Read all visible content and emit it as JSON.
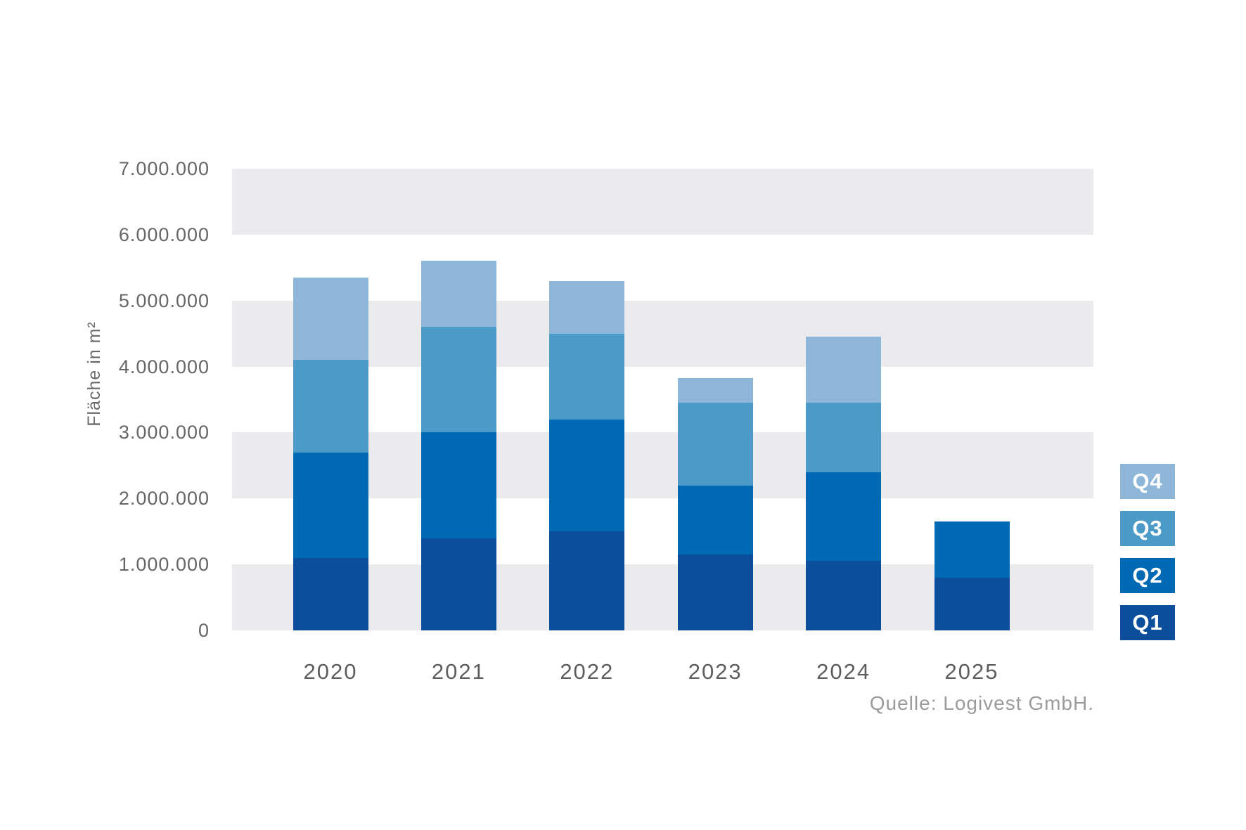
{
  "chart_data": {
    "type": "bar",
    "stacked": true,
    "title": "",
    "ylabel": "Fläche in m²",
    "xlabel": "",
    "categories": [
      "2020",
      "2021",
      "2022",
      "2023",
      "2024",
      "2025"
    ],
    "series": [
      {
        "name": "Q1",
        "color": "#0b4f9c",
        "values": [
          1100000,
          1400000,
          1500000,
          1150000,
          1050000,
          800000
        ]
      },
      {
        "name": "Q2",
        "color": "#0069b3",
        "values": [
          1600000,
          1600000,
          1700000,
          1050000,
          1350000,
          850000
        ]
      },
      {
        "name": "Q3",
        "color": "#4c9ac8",
        "values": [
          1400000,
          1600000,
          1300000,
          1250000,
          1050000,
          0
        ]
      },
      {
        "name": "Q4",
        "color": "#8db6d9",
        "values": [
          1250000,
          1000000,
          800000,
          380000,
          1000000,
          0
        ]
      }
    ],
    "totals": [
      5350000,
      5600000,
      5300000,
      3830000,
      4450000,
      1650000
    ],
    "ylim": [
      0,
      7000000
    ],
    "ytick_step": 1000000,
    "ytick_labels": [
      "0",
      "1.000.000",
      "2.000.000",
      "3.000.000",
      "4.000.000",
      "5.000.000",
      "6.000.000",
      "7.000.000"
    ],
    "grid": "alternating-horizontal-bands",
    "gridband_color": "#ebebed",
    "legend_position": "right",
    "legend_order": [
      "Q4",
      "Q3",
      "Q2",
      "Q1"
    ],
    "source": "Quelle: Logivest GmbH."
  }
}
